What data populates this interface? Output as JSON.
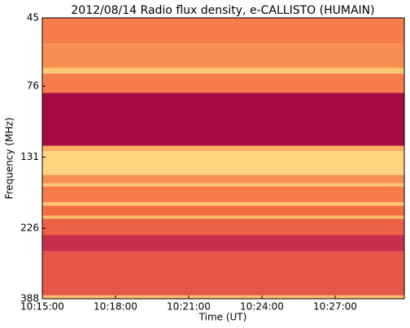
{
  "chart_data": {
    "type": "spectrogram",
    "title": "2012/08/14  Radio flux density, e-CALLISTO (HUMAIN)",
    "x_label": "Time (UT)",
    "y_label": "Frequency (MHz)",
    "xlim": [
      "10:15:00",
      "10:29:50"
    ],
    "xticks": [
      "10:15:00",
      "10:18:00",
      "10:21:00",
      "10:24:00",
      "10:27:00"
    ],
    "ylim": [
      388,
      45
    ],
    "y_log": true,
    "yticks": [
      45,
      76,
      131,
      226,
      388
    ],
    "colors": [
      "#9e0142",
      "#d53e4f",
      "#f46d43",
      "#fdae61",
      "#fee08b",
      "#abdda4"
    ],
    "bands": [
      {
        "lo": 45,
        "hi": 55,
        "level": 0.45
      },
      {
        "lo": 55,
        "hi": 66,
        "level": 0.5
      },
      {
        "lo": 66,
        "hi": 69,
        "level": 0.7
      },
      {
        "lo": 69,
        "hi": 80,
        "level": 0.45
      },
      {
        "lo": 80,
        "hi": 120,
        "level": 0.03
      },
      {
        "lo": 120,
        "hi": 125,
        "level": 0.6
      },
      {
        "lo": 125,
        "hi": 150,
        "level": 0.75
      },
      {
        "lo": 150,
        "hi": 160,
        "level": 0.5
      },
      {
        "lo": 160,
        "hi": 164,
        "level": 0.7
      },
      {
        "lo": 164,
        "hi": 185,
        "level": 0.45
      },
      {
        "lo": 185,
        "hi": 190,
        "level": 0.7
      },
      {
        "lo": 190,
        "hi": 205,
        "level": 0.4
      },
      {
        "lo": 205,
        "hi": 210,
        "level": 0.65
      },
      {
        "lo": 210,
        "hi": 238,
        "level": 0.35
      },
      {
        "lo": 238,
        "hi": 270,
        "level": 0.15
      },
      {
        "lo": 270,
        "hi": 378,
        "level": 0.3
      },
      {
        "lo": 378,
        "hi": 388,
        "level": 0.65
      }
    ]
  }
}
